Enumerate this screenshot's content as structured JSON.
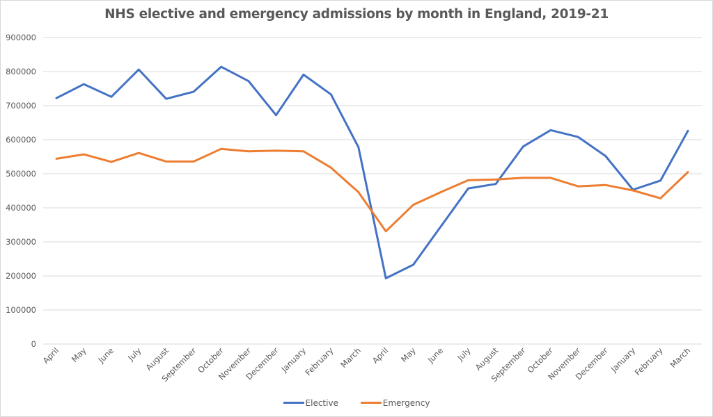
{
  "chart_data": {
    "type": "line",
    "title": "NHS elective and emergency admissions by month in England, 2019-21",
    "xlabel": "",
    "ylabel": "",
    "ylim": [
      0,
      900000
    ],
    "yticks": [
      0,
      100000,
      200000,
      300000,
      400000,
      500000,
      600000,
      700000,
      800000,
      900000
    ],
    "ytick_labels": [
      "0",
      "100000",
      "200000",
      "300000",
      "400000",
      "500000",
      "600000",
      "700000",
      "800000",
      "900000"
    ],
    "grid": true,
    "legend_position": "bottom",
    "categories": [
      "April",
      "May",
      "June",
      "July",
      "August",
      "September",
      "October",
      "November",
      "December",
      "January",
      "February",
      "March",
      "April",
      "May",
      "June",
      "July",
      "August",
      "September",
      "October",
      "November",
      "December",
      "January",
      "February",
      "March"
    ],
    "series": [
      {
        "name": "Elective",
        "color": "#4472c4",
        "values": [
          722000,
          763000,
          726000,
          806000,
          720000,
          741000,
          814000,
          772000,
          672000,
          791000,
          733000,
          578000,
          193000,
          233000,
          345000,
          457000,
          470000,
          580000,
          628000,
          608000,
          552000,
          453000,
          480000,
          626000
        ]
      },
      {
        "name": "Emergency",
        "color": "#ed7d31",
        "values": [
          544000,
          557000,
          535000,
          561000,
          536000,
          536000,
          573000,
          566000,
          568000,
          566000,
          518000,
          446000,
          331000,
          409000,
          446000,
          481000,
          483000,
          488000,
          488000,
          463000,
          467000,
          451000,
          428000,
          505000
        ]
      }
    ]
  }
}
